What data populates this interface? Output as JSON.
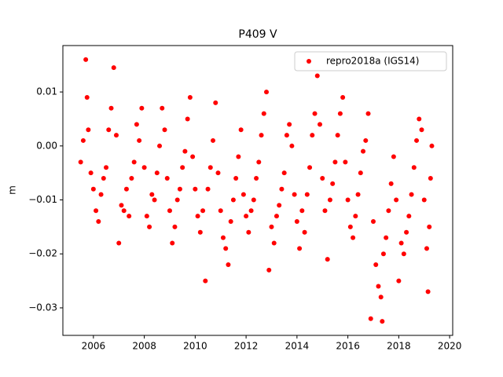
{
  "chart_data": {
    "type": "scatter",
    "title": "P409 V",
    "y_label": "m",
    "legend": "upper right",
    "series": [
      {
        "name": "repro2018a (IGS14)",
        "color": "#ff0000",
        "x": [
          2005.5,
          2005.6,
          2005.7,
          2005.75,
          2005.8,
          2005.9,
          2006.0,
          2006.1,
          2006.2,
          2006.3,
          2006.4,
          2006.5,
          2006.6,
          2006.7,
          2006.8,
          2006.9,
          2007.0,
          2007.1,
          2007.2,
          2007.3,
          2007.4,
          2007.5,
          2007.6,
          2007.7,
          2007.8,
          2007.9,
          2008.0,
          2008.1,
          2008.2,
          2008.3,
          2008.4,
          2008.5,
          2008.6,
          2008.7,
          2008.8,
          2008.9,
          2009.0,
          2009.1,
          2009.2,
          2009.3,
          2009.4,
          2009.5,
          2009.6,
          2009.7,
          2009.8,
          2009.9,
          2010.0,
          2010.1,
          2010.2,
          2010.3,
          2010.4,
          2010.5,
          2010.6,
          2010.7,
          2010.8,
          2010.9,
          2011.0,
          2011.1,
          2011.2,
          2011.3,
          2011.4,
          2011.5,
          2011.6,
          2011.7,
          2011.8,
          2011.9,
          2012.0,
          2012.1,
          2012.2,
          2012.3,
          2012.4,
          2012.5,
          2012.6,
          2012.7,
          2012.8,
          2012.9,
          2013.0,
          2013.1,
          2013.2,
          2013.3,
          2013.4,
          2013.5,
          2013.6,
          2013.7,
          2013.8,
          2013.9,
          2014.0,
          2014.1,
          2014.2,
          2014.3,
          2014.4,
          2014.5,
          2014.6,
          2014.7,
          2014.8,
          2014.9,
          2015.0,
          2015.1,
          2015.2,
          2015.3,
          2015.4,
          2015.5,
          2015.6,
          2015.7,
          2015.8,
          2015.9,
          2016.0,
          2016.1,
          2016.2,
          2016.3,
          2016.4,
          2016.5,
          2016.6,
          2016.7,
          2016.8,
          2016.9,
          2017.0,
          2017.1,
          2017.2,
          2017.3,
          2017.35,
          2017.4,
          2017.5,
          2017.6,
          2017.7,
          2017.8,
          2017.9,
          2018.0,
          2018.1,
          2018.2,
          2018.3,
          2018.4,
          2018.5,
          2018.6,
          2018.7,
          2018.8,
          2018.9,
          2019.0,
          2019.1,
          2019.15,
          2019.2,
          2019.25,
          2019.3
        ],
        "values": [
          -0.003,
          0.001,
          0.016,
          0.009,
          0.003,
          -0.005,
          -0.008,
          -0.012,
          -0.014,
          -0.009,
          -0.006,
          -0.004,
          0.003,
          0.007,
          0.0145,
          0.002,
          -0.018,
          -0.011,
          -0.012,
          -0.008,
          -0.013,
          -0.006,
          -0.003,
          0.004,
          0.001,
          0.007,
          -0.004,
          -0.013,
          -0.015,
          -0.009,
          -0.01,
          -0.005,
          0.0,
          0.007,
          0.003,
          -0.006,
          -0.012,
          -0.018,
          -0.015,
          -0.01,
          -0.008,
          -0.004,
          -0.001,
          0.005,
          0.009,
          -0.002,
          -0.008,
          -0.013,
          -0.016,
          -0.012,
          -0.025,
          -0.008,
          -0.004,
          0.001,
          0.008,
          -0.005,
          -0.012,
          -0.017,
          -0.019,
          -0.022,
          -0.014,
          -0.01,
          -0.006,
          -0.002,
          0.003,
          -0.009,
          -0.013,
          -0.016,
          -0.012,
          -0.01,
          -0.006,
          -0.003,
          0.002,
          0.006,
          0.01,
          -0.023,
          -0.015,
          -0.018,
          -0.013,
          -0.011,
          -0.008,
          -0.005,
          0.002,
          0.004,
          0.0,
          -0.009,
          -0.014,
          -0.019,
          -0.012,
          -0.016,
          -0.009,
          -0.004,
          0.002,
          0.006,
          0.013,
          0.004,
          -0.006,
          -0.012,
          -0.021,
          -0.01,
          -0.007,
          -0.003,
          0.002,
          0.006,
          0.009,
          -0.003,
          -0.01,
          -0.015,
          -0.017,
          -0.013,
          -0.009,
          -0.005,
          -0.001,
          0.001,
          0.006,
          -0.032,
          -0.014,
          -0.022,
          -0.026,
          -0.028,
          -0.0325,
          -0.02,
          -0.017,
          -0.012,
          -0.007,
          -0.002,
          -0.01,
          -0.025,
          -0.018,
          -0.02,
          -0.016,
          -0.013,
          -0.009,
          -0.004,
          0.001,
          0.005,
          0.003,
          -0.01,
          -0.019,
          -0.027,
          -0.015,
          -0.006,
          0.0
        ]
      }
    ],
    "xlim": [
      2004.8,
      2020.12
    ],
    "ylim": [
      -0.0351,
      0.0186
    ],
    "xticks": [
      2006,
      2008,
      2010,
      2012,
      2014,
      2016,
      2018,
      2020
    ],
    "yticks": [
      {
        "value": -0.03,
        "label": "−0.03"
      },
      {
        "value": -0.02,
        "label": "−0.02"
      },
      {
        "value": -0.01,
        "label": "−0.01"
      },
      {
        "value": 0,
        "label": "0.00"
      },
      {
        "value": 0.01,
        "label": "0.01"
      }
    ]
  }
}
